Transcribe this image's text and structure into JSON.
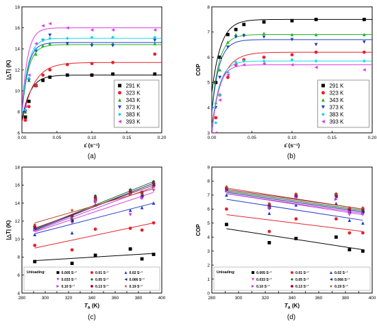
{
  "chart_data": [
    {
      "type": "scatter",
      "caption": "(a)",
      "ylabel": "|△T| (K)",
      "xlabel": "ε̇ (s⁻¹)",
      "xlim": [
        0,
        0.2
      ],
      "ylim": [
        6,
        18
      ],
      "xticks": [
        "0.00",
        "0.05",
        "0.10",
        "0.15",
        "0.20"
      ],
      "yticks": [
        "6",
        "8",
        "10",
        "12",
        "14",
        "16",
        "18"
      ],
      "legend_position": "bottom-right",
      "fit_curves": true,
      "series": [
        {
          "name": "291 K",
          "color": "#000000",
          "marker": "square",
          "x": [
            0.005,
            0.01,
            0.02,
            0.03,
            0.04,
            0.065,
            0.1,
            0.13,
            0.19
          ],
          "y": [
            7.5,
            9.0,
            10.5,
            11.0,
            11.3,
            11.5,
            11.5,
            11.6,
            11.6
          ],
          "fit": {
            "plateau": 11.5,
            "start": 7.2,
            "k": 85
          }
        },
        {
          "name": "323 K",
          "color": "#e8202a",
          "marker": "circle",
          "x": [
            0.005,
            0.01,
            0.02,
            0.03,
            0.04,
            0.065,
            0.1,
            0.13,
            0.19
          ],
          "y": [
            7.2,
            8.5,
            10.5,
            11.5,
            12.0,
            12.5,
            12.6,
            12.7,
            13.5
          ],
          "fit": {
            "plateau": 12.7,
            "start": 7.0,
            "k": 60
          }
        },
        {
          "name": "343 K",
          "color": "#22b422",
          "marker": "triangle-up",
          "x": [
            0.005,
            0.01,
            0.02,
            0.03,
            0.04,
            0.065,
            0.1,
            0.13,
            0.19
          ],
          "y": [
            8.0,
            11.0,
            13.5,
            14.3,
            14.5,
            14.5,
            14.5,
            14.5,
            14.5
          ],
          "fit": {
            "plateau": 14.4,
            "start": 7.8,
            "k": 110
          }
        },
        {
          "name": "373 K",
          "color": "#1f3cc8",
          "marker": "triangle-down",
          "x": [
            0.005,
            0.01,
            0.02,
            0.03,
            0.04,
            0.065,
            0.1,
            0.13,
            0.19
          ],
          "y": [
            8.0,
            11.0,
            13.8,
            14.8,
            15.3,
            14.5,
            14.3,
            14.3,
            14.8
          ],
          "fit": {
            "plateau": 14.6,
            "start": 7.8,
            "k": 120
          }
        },
        {
          "name": "383 K",
          "color": "#17d4e6",
          "marker": "diamond",
          "x": [
            0.005,
            0.01,
            0.02,
            0.03,
            0.04,
            0.065,
            0.1,
            0.13,
            0.19
          ],
          "y": [
            8.2,
            11.2,
            14.0,
            14.8,
            15.0,
            15.0,
            15.1,
            15.1,
            15.1
          ],
          "fit": {
            "plateau": 15.0,
            "start": 8.0,
            "k": 115
          }
        },
        {
          "name": "393 K",
          "color": "#d93de0",
          "marker": "triangle-left",
          "x": [
            0.005,
            0.01,
            0.02,
            0.03,
            0.04,
            0.065,
            0.1,
            0.13,
            0.19
          ],
          "y": [
            8.5,
            11.5,
            14.5,
            16.2,
            16.4,
            16.0,
            15.8,
            15.8,
            15.8
          ],
          "fit": {
            "plateau": 16.0,
            "start": 8.2,
            "k": 125
          }
        }
      ]
    },
    {
      "type": "scatter",
      "caption": "(b)",
      "ylabel": "COP",
      "xlabel": "ε̇ (s⁻¹)",
      "xlim": [
        0,
        0.2
      ],
      "ylim": [
        3,
        8
      ],
      "xticks": [
        "0.00",
        "0.05",
        "0.10",
        "0.15",
        "0.20"
      ],
      "yticks": [
        "3",
        "4",
        "5",
        "6",
        "7",
        "8"
      ],
      "legend_position": "bottom-right",
      "fit_curves": true,
      "series": [
        {
          "name": "291 K",
          "color": "#000000",
          "marker": "square",
          "x": [
            0.005,
            0.01,
            0.02,
            0.03,
            0.04,
            0.065,
            0.1,
            0.13,
            0.19
          ],
          "y": [
            5.0,
            6.0,
            6.9,
            7.1,
            7.3,
            7.4,
            7.45,
            7.5,
            7.5
          ],
          "fit": {
            "plateau": 7.5,
            "start": 4.6,
            "k": 90
          }
        },
        {
          "name": "323 K",
          "color": "#e8202a",
          "marker": "circle",
          "x": [
            0.005,
            0.01,
            0.02,
            0.03,
            0.04,
            0.065,
            0.1,
            0.13,
            0.19
          ],
          "y": [
            3.6,
            4.5,
            5.2,
            5.7,
            5.9,
            6.0,
            6.1,
            6.2,
            6.2
          ],
          "fit": {
            "plateau": 6.2,
            "start": 3.3,
            "k": 75
          }
        },
        {
          "name": "343 K",
          "color": "#22b422",
          "marker": "triangle-up",
          "x": [
            0.005,
            0.01,
            0.02,
            0.03,
            0.04,
            0.065,
            0.1,
            0.13,
            0.19
          ],
          "y": [
            4.2,
            5.5,
            6.6,
            6.9,
            6.9,
            6.95,
            6.9,
            6.9,
            6.9
          ],
          "fit": {
            "plateau": 6.9,
            "start": 3.9,
            "k": 110
          }
        },
        {
          "name": "373 K",
          "color": "#1f3cc8",
          "marker": "triangle-down",
          "x": [
            0.005,
            0.01,
            0.02,
            0.03,
            0.04,
            0.065,
            0.1,
            0.13,
            0.19
          ],
          "y": [
            4.0,
            5.2,
            6.4,
            6.8,
            6.85,
            6.8,
            6.7,
            6.5,
            6.6
          ],
          "fit": {
            "plateau": 6.7,
            "start": 3.8,
            "k": 110
          }
        },
        {
          "name": "383 K",
          "color": "#17d4e6",
          "marker": "diamond",
          "x": [
            0.005,
            0.01,
            0.02,
            0.03,
            0.04,
            0.065,
            0.1,
            0.13,
            0.19
          ],
          "y": [
            3.4,
            4.5,
            5.4,
            5.8,
            5.85,
            5.85,
            5.9,
            5.85,
            5.85
          ],
          "fit": {
            "plateau": 5.85,
            "start": 3.1,
            "k": 110
          }
        },
        {
          "name": "393 K",
          "color": "#d93de0",
          "marker": "triangle-left",
          "x": [
            0.005,
            0.01,
            0.02,
            0.03,
            0.04,
            0.065,
            0.1,
            0.13,
            0.19
          ],
          "y": [
            3.0,
            4.3,
            5.3,
            5.7,
            5.7,
            5.75,
            5.7,
            5.6,
            5.5
          ],
          "fit": {
            "plateau": 5.7,
            "start": 2.9,
            "k": 120
          }
        }
      ]
    },
    {
      "type": "scatter",
      "caption": "(c)",
      "ylabel": "|△T| (K)",
      "xlabel": "T_A (K)",
      "xlim": [
        280,
        400
      ],
      "ylim": [
        4,
        18
      ],
      "xticks": [
        "280",
        "290",
        "300",
        "310",
        "320",
        "330",
        "340",
        "350",
        "360",
        "370",
        "380",
        "390",
        "400"
      ],
      "yticks": [
        "4",
        "6",
        "8",
        "10",
        "12",
        "14",
        "16",
        "18"
      ],
      "legend_position": "bottom",
      "legend_title": "Unloading:",
      "fit_lines": true,
      "series": [
        {
          "name": "0.005 S⁻¹",
          "color": "#000000",
          "marker": "square",
          "x": [
            291,
            323,
            343,
            373,
            383,
            393
          ],
          "y": [
            7.5,
            7.3,
            8.2,
            8.9,
            7.8,
            8.3
          ],
          "fit": [
            7.6,
            8.4
          ]
        },
        {
          "name": "0.01 S⁻¹",
          "color": "#e8202a",
          "marker": "circle",
          "x": [
            291,
            323,
            343,
            373,
            383,
            393
          ],
          "y": [
            9.3,
            8.8,
            11.1,
            11.2,
            11.0,
            11.8
          ],
          "fit": [
            9.0,
            11.8
          ]
        },
        {
          "name": "0.02 S⁻¹",
          "color": "#1f3cc8",
          "marker": "triangle-up",
          "x": [
            291,
            323,
            343,
            373,
            383,
            393
          ],
          "y": [
            10.5,
            10.7,
            13.8,
            13.2,
            13.5,
            14.0
          ],
          "fit": [
            10.6,
            14.0
          ]
        },
        {
          "name": "0.033 S⁻¹",
          "color": "#d93de0",
          "marker": "triangle-down",
          "x": [
            291,
            323,
            343,
            373,
            383,
            393
          ],
          "y": [
            11.0,
            11.8,
            14.0,
            12.7,
            14.5,
            15.4
          ],
          "fit": [
            10.8,
            15.2
          ]
        },
        {
          "name": "0.05 S⁻¹",
          "color": "#0e6e1e",
          "marker": "diamond",
          "x": [
            291,
            323,
            343,
            373,
            383,
            393
          ],
          "y": [
            11.3,
            12.2,
            14.8,
            15.5,
            15.0,
            16.4
          ],
          "fit": [
            11.1,
            16.4
          ]
        },
        {
          "name": "0.066 S⁻¹",
          "color": "#1a237e",
          "marker": "triangle-left",
          "x": [
            291,
            323,
            343,
            373,
            383,
            393
          ],
          "y": [
            11.2,
            12.0,
            14.4,
            15.2,
            14.8,
            16.0
          ],
          "fit": [
            11.0,
            16.2
          ]
        },
        {
          "name": "0.10 S⁻¹",
          "color": "#b03ae0",
          "marker": "triangle-right",
          "x": [
            291,
            323,
            343,
            373,
            383,
            393
          ],
          "y": [
            11.0,
            12.4,
            14.2,
            15.0,
            14.6,
            15.8
          ],
          "fit": [
            10.9,
            15.8
          ]
        },
        {
          "name": "0.13 S⁻¹",
          "color": "#9b1747",
          "marker": "circle",
          "x": [
            291,
            323,
            343,
            373,
            383,
            393
          ],
          "y": [
            11.4,
            12.6,
            14.6,
            15.3,
            15.2,
            16.2
          ],
          "fit": [
            11.2,
            16.0
          ]
        },
        {
          "name": "0.19 S⁻¹",
          "color": "#b8472a",
          "marker": "star",
          "x": [
            291,
            323,
            343,
            373,
            383,
            393
          ],
          "y": [
            11.6,
            13.2,
            14.4,
            15.0,
            15.0,
            15.8
          ],
          "fit": [
            11.8,
            15.6
          ]
        }
      ]
    },
    {
      "type": "scatter",
      "caption": "(d)",
      "ylabel": "COP",
      "xlabel": "T_A (K)",
      "xlim": [
        280,
        400
      ],
      "ylim": [
        0,
        9
      ],
      "xticks": [
        "280",
        "290",
        "300",
        "310",
        "320",
        "330",
        "340",
        "350",
        "360",
        "370",
        "380",
        "390",
        "400"
      ],
      "yticks": [
        "0",
        "1",
        "2",
        "3",
        "4",
        "5",
        "6",
        "7",
        "8",
        "9"
      ],
      "legend_position": "bottom",
      "legend_title": "Unloading:",
      "fit_lines": true,
      "series": [
        {
          "name": "0.005 S⁻¹",
          "color": "#000000",
          "marker": "square",
          "x": [
            291,
            323,
            343,
            373,
            383,
            393
          ],
          "y": [
            4.9,
            3.6,
            3.9,
            4.0,
            3.1,
            3.0
          ],
          "fit": [
            4.6,
            3.1
          ]
        },
        {
          "name": "0.01 S⁻¹",
          "color": "#e8202a",
          "marker": "circle",
          "x": [
            291,
            323,
            343,
            373,
            383,
            393
          ],
          "y": [
            6.0,
            4.4,
            5.3,
            5.3,
            4.3,
            4.3
          ],
          "fit": [
            5.6,
            4.4
          ]
        },
        {
          "name": "0.02 S⁻¹",
          "color": "#1f3cc8",
          "marker": "triangle-up",
          "x": [
            291,
            323,
            343,
            373,
            383,
            393
          ],
          "y": [
            7.0,
            5.7,
            6.3,
            6.4,
            5.2,
            5.0
          ],
          "fit": [
            6.7,
            5.2
          ]
        },
        {
          "name": "0.033 S⁻¹",
          "color": "#d93de0",
          "marker": "triangle-down",
          "x": [
            291,
            323,
            343,
            373,
            383,
            393
          ],
          "y": [
            7.3,
            6.0,
            6.8,
            6.8,
            5.6,
            5.6
          ],
          "fit": [
            7.1,
            5.6
          ]
        },
        {
          "name": "0.05 S⁻¹",
          "color": "#0e6e1e",
          "marker": "diamond",
          "x": [
            291,
            323,
            343,
            373,
            383,
            393
          ],
          "y": [
            7.5,
            6.2,
            7.0,
            7.1,
            5.9,
            5.9
          ],
          "fit": [
            7.3,
            5.9
          ]
        },
        {
          "name": "0.066 S⁻¹",
          "color": "#1a237e",
          "marker": "triangle-left",
          "x": [
            291,
            323,
            343,
            373,
            383,
            393
          ],
          "y": [
            7.4,
            6.1,
            6.9,
            6.9,
            5.8,
            5.8
          ],
          "fit": [
            7.2,
            5.8
          ]
        },
        {
          "name": "0.10 S⁻¹",
          "color": "#b03ae0",
          "marker": "triangle-right",
          "x": [
            291,
            323,
            343,
            373,
            383,
            393
          ],
          "y": [
            7.3,
            6.1,
            6.9,
            6.7,
            5.8,
            5.7
          ],
          "fit": [
            7.1,
            5.7
          ]
        },
        {
          "name": "0.13 S⁻¹",
          "color": "#9b1747",
          "marker": "circle",
          "x": [
            291,
            323,
            343,
            373,
            383,
            393
          ],
          "y": [
            7.5,
            6.3,
            7.0,
            7.0,
            6.0,
            6.0
          ],
          "fit": [
            7.4,
            6.0
          ]
        },
        {
          "name": "0.19 S⁻¹",
          "color": "#b8472a",
          "marker": "star",
          "x": [
            291,
            323,
            343,
            373,
            383,
            393
          ],
          "y": [
            7.6,
            6.4,
            7.1,
            7.1,
            6.1,
            6.1
          ],
          "fit": [
            7.5,
            6.0
          ]
        }
      ]
    }
  ]
}
